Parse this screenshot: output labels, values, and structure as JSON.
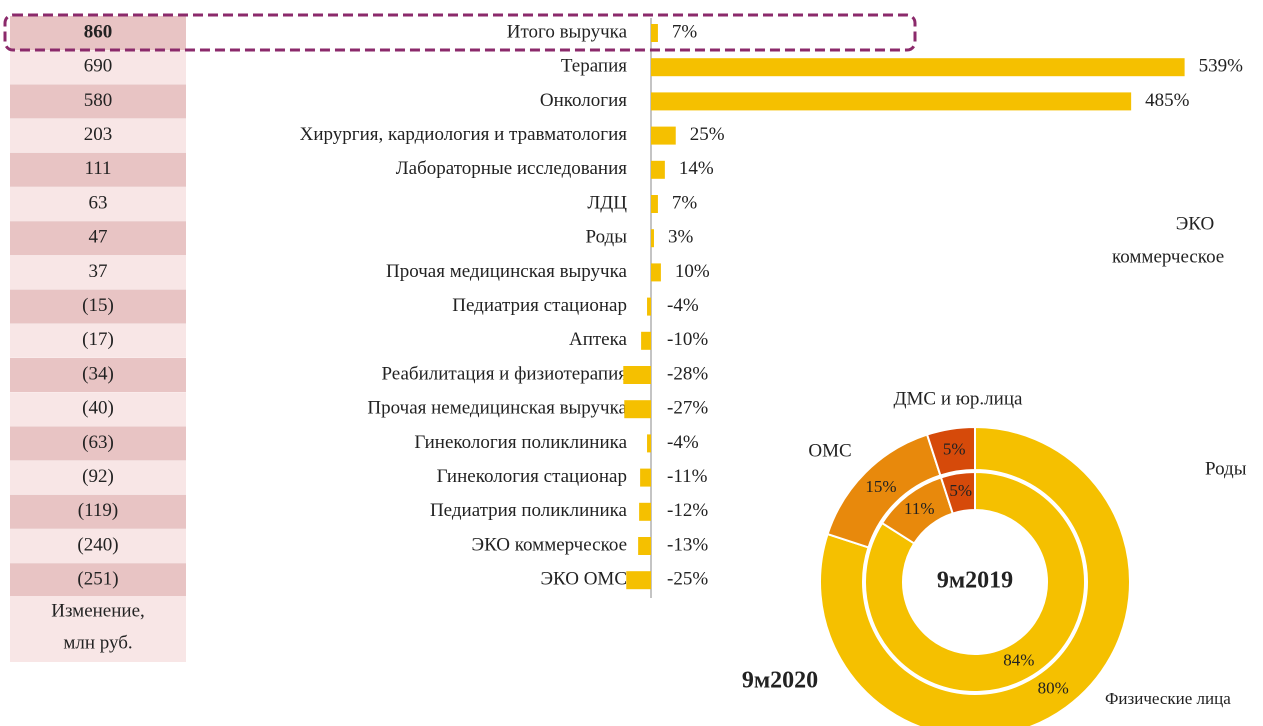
{
  "chart_data": [
    {
      "type": "bar",
      "categories": [
        "Итого выручка",
        "Терапия",
        "Онкология",
        "Хирургия, кардиология и травматология",
        "Лабораторные исследования",
        "ЛДЦ",
        "Роды",
        "Прочая медицинская выручка",
        "Педиатрия стационар",
        "Аптека",
        "Реабилитация и физиотерапия",
        "Прочая немедицинская выручка",
        "Гинекология поликлиника",
        "Гинекология стационар",
        "Педиатрия поликлиника",
        "ЭКО коммерческое",
        "ЭКО ОМС"
      ],
      "values": [
        7,
        539,
        485,
        25,
        14,
        7,
        3,
        10,
        -4,
        -10,
        -28,
        -27,
        -4,
        -11,
        -12,
        -13,
        -25
      ],
      "value_labels": [
        "7%",
        "539%",
        "485%",
        "25%",
        "14%",
        "7%",
        "3%",
        "10%",
        "-4%",
        "-10%",
        "-28%",
        "-27%",
        "-4%",
        "-11%",
        "-12%",
        "-13%",
        "-25%"
      ],
      "color": "#f5c000",
      "changes": [
        860,
        690,
        580,
        203,
        111,
        63,
        47,
        37,
        -15,
        -17,
        -34,
        -40,
        -63,
        -92,
        -119,
        -240,
        -251
      ],
      "change_labels": [
        "860",
        "690",
        "580",
        "203",
        "111",
        "63",
        "47",
        "37",
        "(15)",
        "(17)",
        "(34)",
        "(40)",
        "(63)",
        "(92)",
        "(119)",
        "(240)",
        "(251)"
      ],
      "changes_label": [
        "Изменение,",
        "млн руб."
      ]
    },
    {
      "type": "donut",
      "categories": [
        "Физические лица",
        "ОМС",
        "ДМС и юр.лица"
      ],
      "colors": [
        "#f5c000",
        "#e8890c",
        "#d64a0a"
      ],
      "rings": [
        {
          "name": "9м2020",
          "values": [
            80,
            15,
            5
          ],
          "value_labels": [
            "80%",
            "15%",
            "5%"
          ]
        },
        {
          "name": "9м2019",
          "values": [
            84,
            11,
            5
          ],
          "value_labels": [
            "84%",
            "11%",
            "5%"
          ]
        }
      ],
      "annotations": [
        "ЭКО",
        "коммерческое",
        "Роды"
      ]
    }
  ]
}
